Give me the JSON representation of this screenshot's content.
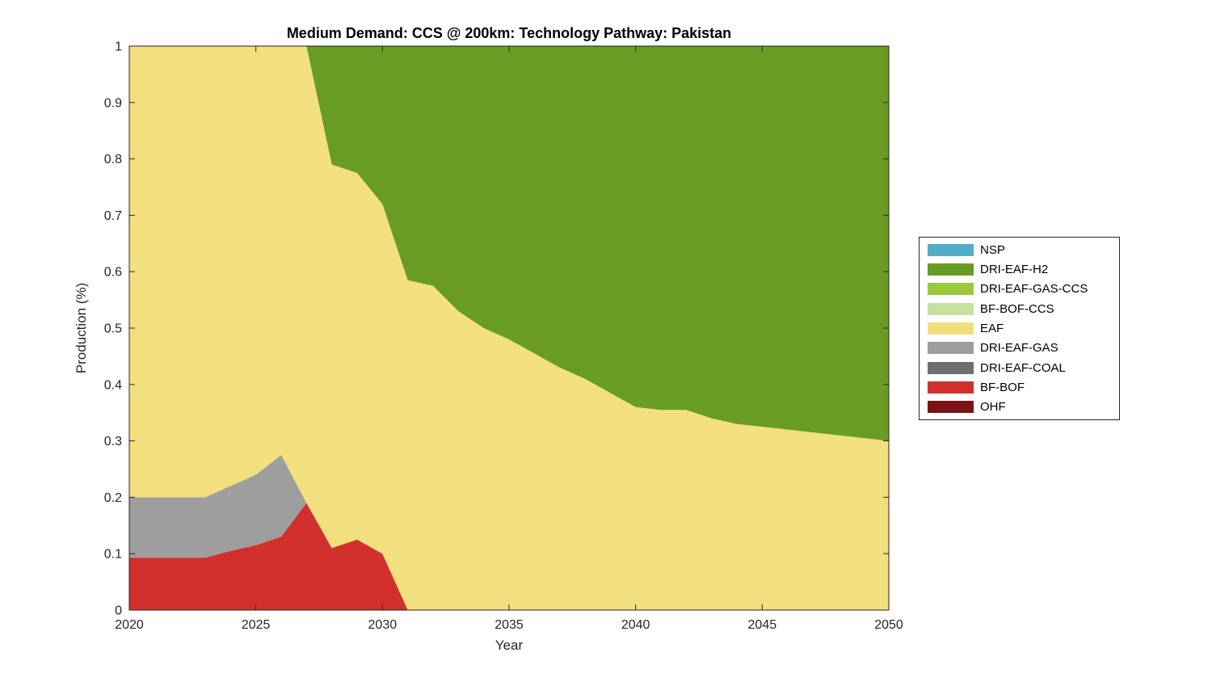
{
  "figure": {
    "background": "#FFFFFF"
  },
  "chart_data": {
    "type": "area",
    "stacked": true,
    "title": "Medium Demand: CCS @ 200km: Technology Pathway: Pakistan",
    "xlabel": "Year",
    "ylabel": "Production (%)",
    "xlim": [
      2020,
      2050
    ],
    "ylim": [
      0,
      1
    ],
    "xticks": [
      2020,
      2025,
      2030,
      2035,
      2040,
      2045,
      2050
    ],
    "yticks": [
      0,
      0.1,
      0.2,
      0.3,
      0.4,
      0.5,
      0.6,
      0.7,
      0.8,
      0.9,
      1
    ],
    "grid": false,
    "axis_color": "#262626",
    "legend_position": "right-outside",
    "x": [
      2020,
      2021,
      2022,
      2023,
      2024,
      2025,
      2026,
      2027,
      2028,
      2029,
      2030,
      2031,
      2032,
      2033,
      2034,
      2035,
      2036,
      2037,
      2038,
      2039,
      2040,
      2041,
      2042,
      2043,
      2044,
      2045,
      2046,
      2047,
      2048,
      2049,
      2050
    ],
    "series": [
      {
        "name": "NSP",
        "color": "#52ADC8",
        "values": [
          0,
          0,
          0,
          0,
          0,
          0,
          0,
          0,
          0,
          0,
          0,
          0,
          0,
          0,
          0,
          0,
          0,
          0,
          0,
          0,
          0,
          0,
          0,
          0,
          0,
          0,
          0,
          0,
          0,
          0,
          0
        ]
      },
      {
        "name": "DRI-EAF-H2",
        "color": "#689C23",
        "values": [
          0,
          0,
          0,
          0,
          0,
          0,
          0,
          0,
          0.21,
          0.225,
          0.28,
          0.415,
          0.425,
          0.47,
          0.5,
          0.52,
          0.545,
          0.57,
          0.59,
          0.615,
          0.64,
          0.645,
          0.645,
          0.66,
          0.67,
          0.675,
          0.68,
          0.685,
          0.69,
          0.695,
          0.7
        ]
      },
      {
        "name": "DRI-EAF-GAS-CCS",
        "color": "#9AC93C",
        "values": [
          0,
          0,
          0,
          0,
          0,
          0,
          0,
          0,
          0,
          0,
          0,
          0,
          0,
          0,
          0,
          0,
          0,
          0,
          0,
          0,
          0,
          0,
          0,
          0,
          0,
          0,
          0,
          0,
          0,
          0,
          0
        ]
      },
      {
        "name": "BF-BOF-CCS",
        "color": "#C7E2A0",
        "values": [
          0,
          0,
          0,
          0,
          0,
          0,
          0,
          0,
          0,
          0,
          0,
          0,
          0,
          0,
          0,
          0,
          0,
          0,
          0,
          0,
          0,
          0,
          0,
          0,
          0,
          0,
          0,
          0,
          0,
          0,
          0
        ]
      },
      {
        "name": "EAF",
        "color": "#F2DF7D",
        "values": [
          0.8,
          0.8,
          0.8,
          0.8,
          0.78,
          0.76,
          0.725,
          0.81,
          0.68,
          0.65,
          0.62,
          0.585,
          0.575,
          0.53,
          0.5,
          0.48,
          0.455,
          0.43,
          0.41,
          0.385,
          0.36,
          0.355,
          0.355,
          0.34,
          0.33,
          0.325,
          0.32,
          0.315,
          0.31,
          0.305,
          0.3
        ]
      },
      {
        "name": "DRI-EAF-GAS",
        "color": "#9E9E9E",
        "values": [
          0.107,
          0.107,
          0.107,
          0.107,
          0.115,
          0.125,
          0.145,
          0,
          0,
          0,
          0,
          0,
          0,
          0,
          0,
          0,
          0,
          0,
          0,
          0,
          0,
          0,
          0,
          0,
          0,
          0,
          0,
          0,
          0,
          0,
          0
        ]
      },
      {
        "name": "DRI-EAF-COAL",
        "color": "#6E6E6E",
        "values": [
          0,
          0,
          0,
          0,
          0,
          0,
          0,
          0,
          0,
          0,
          0,
          0,
          0,
          0,
          0,
          0,
          0,
          0,
          0,
          0,
          0,
          0,
          0,
          0,
          0,
          0,
          0,
          0,
          0,
          0,
          0
        ]
      },
      {
        "name": "BF-BOF",
        "color": "#D2302C",
        "values": [
          0.093,
          0.093,
          0.093,
          0.093,
          0.105,
          0.115,
          0.13,
          0.19,
          0.11,
          0.125,
          0.1,
          0,
          0,
          0,
          0,
          0,
          0,
          0,
          0,
          0,
          0,
          0,
          0,
          0,
          0,
          0,
          0,
          0,
          0,
          0,
          0
        ]
      },
      {
        "name": "OHF",
        "color": "#7C1315",
        "values": [
          0,
          0,
          0,
          0,
          0,
          0,
          0,
          0,
          0,
          0,
          0,
          0,
          0,
          0,
          0,
          0,
          0,
          0,
          0,
          0,
          0,
          0,
          0,
          0,
          0,
          0,
          0,
          0,
          0,
          0,
          0
        ]
      }
    ]
  }
}
